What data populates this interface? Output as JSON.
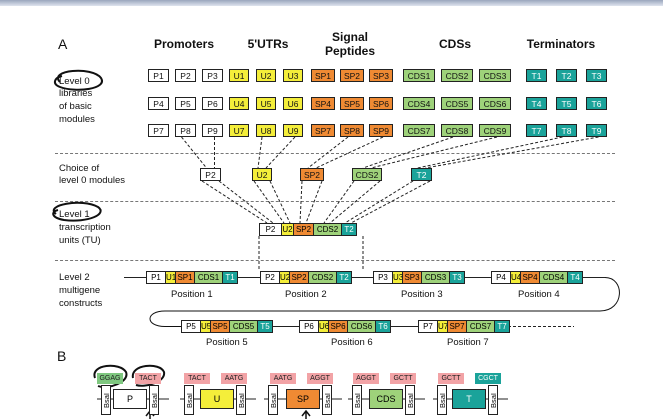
{
  "panelA": "A",
  "panelB": "B",
  "headers": {
    "promoters": "Promoters",
    "utrs": "5'UTRs",
    "signal1": "Signal",
    "signal2": "Peptides",
    "cds": "CDSs",
    "terminators": "Terminators"
  },
  "rowLabels": {
    "level0_l1": "Level 0",
    "level0_l2": "libraries",
    "level0_l3": "of basic",
    "level0_l4": "modules",
    "choice_l1": "Choice of",
    "choice_l2": "level 0 modules",
    "level1_l1": "Level 1",
    "level1_l2": "transcription",
    "level1_l3": "units (TU)",
    "level2_l1": "Level 2",
    "level2_l2": "multigene",
    "level2_l3": "constructs"
  },
  "library": {
    "P": [
      [
        "P1",
        "P2",
        "P3"
      ],
      [
        "P4",
        "P5",
        "P6"
      ],
      [
        "P7",
        "P8",
        "P9"
      ]
    ],
    "U": [
      [
        "U1",
        "U2",
        "U3"
      ],
      [
        "U4",
        "U5",
        "U6"
      ],
      [
        "U7",
        "U8",
        "U9"
      ]
    ],
    "SP": [
      [
        "SP1",
        "SP2",
        "SP3"
      ],
      [
        "SP4",
        "SP5",
        "SP6"
      ],
      [
        "SP7",
        "SP8",
        "SP9"
      ]
    ],
    "CDS": [
      [
        "CDS1",
        "CDS2",
        "CDS3"
      ],
      [
        "CDS4",
        "CDS5",
        "CDS6"
      ],
      [
        "CDS7",
        "CDS8",
        "CDS9"
      ]
    ],
    "T": [
      [
        "T1",
        "T2",
        "T3"
      ],
      [
        "T4",
        "T5",
        "T6"
      ],
      [
        "T7",
        "T8",
        "T9"
      ]
    ]
  },
  "choice": {
    "P": "P2",
    "U": "U2",
    "SP": "SP2",
    "CDS": "CDS2",
    "T": "T2"
  },
  "tu": [
    "P2",
    "U2",
    "SP2",
    "CDS2",
    "T2"
  ],
  "level2": [
    {
      "parts": [
        "P1",
        "U1",
        "SP1",
        "CDS1",
        "T1"
      ],
      "label": "Position 1"
    },
    {
      "parts": [
        "P2",
        "U2",
        "SP2",
        "CDS2",
        "T2"
      ],
      "label": "Position 2"
    },
    {
      "parts": [
        "P3",
        "U3",
        "SP3",
        "CDS3",
        "T3"
      ],
      "label": "Position 3"
    },
    {
      "parts": [
        "P4",
        "U4",
        "SP4",
        "CDS4",
        "T4"
      ],
      "label": "Position 4"
    },
    {
      "parts": [
        "P5",
        "U5",
        "SP5",
        "CDS5",
        "T5"
      ],
      "label": "Position 5"
    },
    {
      "parts": [
        "P6",
        "U6",
        "SP6",
        "CDS6",
        "T6"
      ],
      "label": "Position 6"
    },
    {
      "parts": [
        "P7",
        "U7",
        "SP7",
        "CDS7",
        "T7"
      ],
      "label": "Position 7"
    }
  ],
  "panelB_parts": {
    "overhangs": [
      "GGAG",
      "TACT",
      "TACT",
      "AATG",
      "AATG",
      "AGGT",
      "AGGT",
      "GCTT",
      "GCTT",
      "CGCT"
    ],
    "bsai": "BsaI",
    "modules": [
      "P",
      "U",
      "SP",
      "CDS",
      "T"
    ]
  },
  "colors": {
    "promoter": "#ffffff",
    "utr": "#f4ee3a",
    "signal_peptide": "#ef8a33",
    "cds": "#9ed27a",
    "terminator": "#1aa39a",
    "overhang_pink": "#f2a3a6",
    "overhang_green": "#7ec77f"
  }
}
